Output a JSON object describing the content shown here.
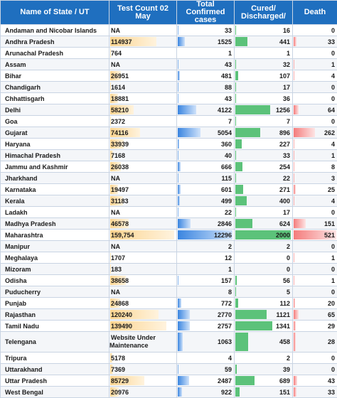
{
  "headers": {
    "state": "Name of State / UT",
    "test": "Test Count 02 May",
    "confirmed": "Total Confirmed cases",
    "cured": "Cured/ Discharged/",
    "death": "Death"
  },
  "colors": {
    "header_bg": "#1f6fbf",
    "test_bar": "#fbd48f",
    "confirmed_bar": "#3a85e0",
    "cured_bar": "#5cc27a",
    "death_bar": "#f47c7c"
  },
  "rows": [
    {
      "state": "Andaman and Nicobar Islands",
      "test": "NA",
      "test_value": 0,
      "confirmed": "33",
      "cured": "16",
      "death": "0"
    },
    {
      "state": "Andhra Pradesh",
      "test": "114937",
      "test_value": 114937,
      "confirmed": "1525",
      "cured": "441",
      "death": "33"
    },
    {
      "state": "Arunachal Pradesh",
      "test": "764",
      "test_value": 764,
      "confirmed": "1",
      "cured": "1",
      "death": "0"
    },
    {
      "state": "Assam",
      "test": "NA",
      "test_value": 0,
      "confirmed": "43",
      "cured": "32",
      "death": "1"
    },
    {
      "state": "Bihar",
      "test": "26951",
      "test_value": 26951,
      "confirmed": "481",
      "cured": "107",
      "death": "4"
    },
    {
      "state": "Chandigarh",
      "test": "1614",
      "test_value": 1614,
      "confirmed": "88",
      "cured": "17",
      "death": "0"
    },
    {
      "state": "Chhattisgarh",
      "test": "18881",
      "test_value": 18881,
      "confirmed": "43",
      "cured": "36",
      "death": "0"
    },
    {
      "state": "Delhi",
      "test": "58210",
      "test_value": 58210,
      "confirmed": "4122",
      "cured": "1256",
      "death": "64"
    },
    {
      "state": "Goa",
      "test": "2372",
      "test_value": 2372,
      "confirmed": "7",
      "cured": "7",
      "death": "0"
    },
    {
      "state": "Gujarat",
      "test": "74116",
      "test_value": 74116,
      "confirmed": "5054",
      "cured": "896",
      "death": "262"
    },
    {
      "state": "Haryana",
      "test": "33939",
      "test_value": 33939,
      "confirmed": "360",
      "cured": "227",
      "death": "4"
    },
    {
      "state": "Himachal Pradesh",
      "test": "7168",
      "test_value": 7168,
      "confirmed": "40",
      "cured": "33",
      "death": "1"
    },
    {
      "state": "Jammu and Kashmir",
      "test": "26038",
      "test_value": 26038,
      "confirmed": "666",
      "cured": "254",
      "death": "8"
    },
    {
      "state": "Jharkhand",
      "test": "NA",
      "test_value": 0,
      "confirmed": "115",
      "cured": "22",
      "death": "3"
    },
    {
      "state": "Karnataka",
      "test": "19497",
      "test_value": 19497,
      "confirmed": "601",
      "cured": "271",
      "death": "25"
    },
    {
      "state": "Kerala",
      "test": "31183",
      "test_value": 31183,
      "confirmed": "499",
      "cured": "400",
      "death": "4"
    },
    {
      "state": "Ladakh",
      "test": "NA",
      "test_value": 0,
      "confirmed": "22",
      "cured": "17",
      "death": "0"
    },
    {
      "state": "Madhya Pradesh",
      "test": "46578",
      "test_value": 46578,
      "confirmed": "2846",
      "cured": "624",
      "death": "151"
    },
    {
      "state": "Maharashtra",
      "test": "159,754",
      "test_value": 159754,
      "confirmed": "12296",
      "cured": "2000",
      "death": "521"
    },
    {
      "state": "Manipur",
      "test": "NA",
      "test_value": 0,
      "confirmed": "2",
      "cured": "2",
      "death": "0"
    },
    {
      "state": "Meghalaya",
      "test": "1707",
      "test_value": 1707,
      "confirmed": "12",
      "cured": "0",
      "death": "1"
    },
    {
      "state": "Mizoram",
      "test": "183",
      "test_value": 183,
      "confirmed": "1",
      "cured": "0",
      "death": "0"
    },
    {
      "state": "Odisha",
      "test": "38658",
      "test_value": 38658,
      "confirmed": "157",
      "cured": "56",
      "death": "1"
    },
    {
      "state": "Puducherry",
      "test": "NA",
      "test_value": 0,
      "confirmed": "8",
      "cured": "5",
      "death": "0"
    },
    {
      "state": "Punjab",
      "test": "24868",
      "test_value": 24868,
      "confirmed": "772",
      "cured": "112",
      "death": "20"
    },
    {
      "state": "Rajasthan",
      "test": "120240",
      "test_value": 120240,
      "confirmed": "2770",
      "cured": "1121",
      "death": "65"
    },
    {
      "state": "Tamil Nadu",
      "test": "139490",
      "test_value": 139490,
      "confirmed": "2757",
      "cured": "1341",
      "death": "29"
    },
    {
      "state": "Telengana",
      "test": "Website Under Maintenance",
      "test_value": 0,
      "confirmed": "1063",
      "cured": "458",
      "death": "28"
    },
    {
      "state": "Tripura",
      "test": "5178",
      "test_value": 5178,
      "confirmed": "4",
      "cured": "2",
      "death": "0"
    },
    {
      "state": "Uttarakhand",
      "test": "7369",
      "test_value": 7369,
      "confirmed": "59",
      "cured": "39",
      "death": "0"
    },
    {
      "state": "Uttar Pradesh",
      "test": "85729",
      "test_value": 85729,
      "confirmed": "2487",
      "cured": "689",
      "death": "43"
    },
    {
      "state": "West Bengal",
      "test": "20976",
      "test_value": 20976,
      "confirmed": "922",
      "cured": "151",
      "death": "33"
    }
  ]
}
